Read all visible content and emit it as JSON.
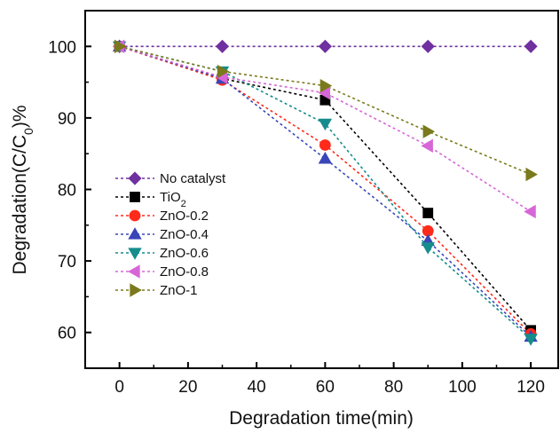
{
  "chart_data": {
    "type": "line",
    "title": "",
    "xlabel": "Degradation time(min)",
    "ylabel": {
      "prefix": "Degradation(C/C",
      "sub": "0",
      "suffix": ")%"
    },
    "xlim": [
      -10,
      128
    ],
    "ylim": [
      55,
      105
    ],
    "xticks": [
      0,
      20,
      40,
      60,
      80,
      100,
      120
    ],
    "yticks": [
      60,
      70,
      80,
      90,
      100
    ],
    "grid": false,
    "legend_position": "left-middle",
    "x": [
      0,
      30,
      60,
      90,
      120
    ],
    "series": [
      {
        "name": "No catalyst",
        "name_sub": "",
        "color": "#7030a0",
        "marker": "diamond",
        "values": [
          100,
          100,
          100,
          100,
          100
        ]
      },
      {
        "name": "TiO",
        "name_sub": "2",
        "color": "#000000",
        "marker": "square",
        "values": [
          100,
          95.5,
          92.5,
          76.7,
          60.3
        ]
      },
      {
        "name": "ZnO-0.2",
        "name_sub": "",
        "color": "#ff2a1a",
        "marker": "circle",
        "values": [
          100,
          95.3,
          86.2,
          74.2,
          59.8
        ]
      },
      {
        "name": "ZnO-0.4",
        "name_sub": "",
        "color": "#3846b8",
        "marker": "triangle-up",
        "values": [
          100,
          95.5,
          84.3,
          72.8,
          59.4
        ]
      },
      {
        "name": "ZnO-0.6",
        "name_sub": "",
        "color": "#168c8c",
        "marker": "triangle-down",
        "values": [
          100,
          96.5,
          89.2,
          71.9,
          59.1
        ]
      },
      {
        "name": "ZnO-0.8",
        "name_sub": "",
        "color": "#d766d7",
        "marker": "triangle-left",
        "values": [
          100,
          95.7,
          93.5,
          86.1,
          76.9
        ]
      },
      {
        "name": "ZnO-1",
        "name_sub": "",
        "color": "#7a7a1c",
        "marker": "triangle-right",
        "values": [
          100,
          96.5,
          94.5,
          88.1,
          82.1
        ]
      }
    ]
  }
}
